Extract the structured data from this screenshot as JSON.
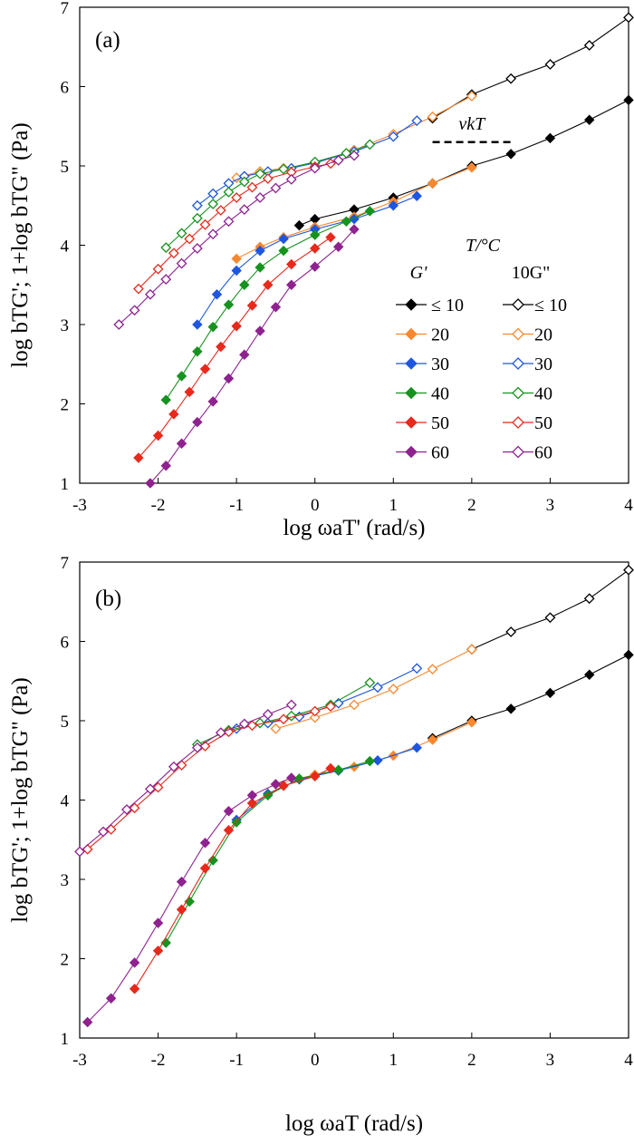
{
  "figure": {
    "description_free": true
  },
  "colors": {
    "le10": "#000000",
    "t20": "#f7882f",
    "t30": "#1e56e0",
    "t40": "#16931f",
    "t50": "#e8291c",
    "t60": "#8e228f"
  },
  "chart_data": [
    {
      "type": "scatter",
      "panel_label": "(a)",
      "xlabel": "log ωaT' (rad/s)",
      "ylabel": "log bTG'; 1+log bTG\" (Pa)",
      "xlim": [
        -3,
        4
      ],
      "ylim": [
        1,
        7
      ],
      "xticks": [
        "-3",
        "-2",
        "-1",
        "0",
        "1",
        "2",
        "3",
        "4"
      ],
      "yticks": [
        "1",
        "2",
        "3",
        "4",
        "5",
        "6",
        "7"
      ],
      "annotation": {
        "text": "νkT",
        "x_from": 1.5,
        "x_to": 2.5,
        "y": 5.3
      },
      "legend": {
        "title": "T/°C",
        "col1_header": "G'",
        "col2_header": "10G\"",
        "entries": [
          "≤ 10",
          "20",
          "30",
          "40",
          "50",
          "60"
        ]
      },
      "series": [
        {
          "name": "G' ≤ 10",
          "color_key": "le10",
          "filled": true,
          "points": [
            [
              -0.2,
              4.25
            ],
            [
              0,
              4.33
            ],
            [
              0.5,
              4.45
            ],
            [
              1,
              4.6
            ],
            [
              1.5,
              4.78
            ],
            [
              2,
              5.0
            ],
            [
              2.5,
              5.15
            ],
            [
              3,
              5.35
            ],
            [
              3.5,
              5.58
            ],
            [
              4,
              5.83
            ]
          ]
        },
        {
          "name": "G' 20",
          "color_key": "t20",
          "filled": true,
          "points": [
            [
              -1.0,
              3.83
            ],
            [
              -0.7,
              3.98
            ],
            [
              -0.4,
              4.1
            ],
            [
              0,
              4.23
            ],
            [
              0.5,
              4.36
            ],
            [
              1,
              4.55
            ],
            [
              1.5,
              4.78
            ],
            [
              2,
              4.98
            ]
          ]
        },
        {
          "name": "G' 30",
          "color_key": "t30",
          "filled": true,
          "points": [
            [
              -1.5,
              3.0
            ],
            [
              -1.25,
              3.38
            ],
            [
              -1.0,
              3.68
            ],
            [
              -0.7,
              3.93
            ],
            [
              -0.4,
              4.08
            ],
            [
              0,
              4.2
            ],
            [
              0.5,
              4.33
            ],
            [
              1,
              4.5
            ],
            [
              1.3,
              4.62
            ]
          ]
        },
        {
          "name": "G' 40",
          "color_key": "t40",
          "filled": true,
          "points": [
            [
              -1.9,
              2.05
            ],
            [
              -1.7,
              2.35
            ],
            [
              -1.5,
              2.66
            ],
            [
              -1.3,
              2.97
            ],
            [
              -1.1,
              3.25
            ],
            [
              -0.9,
              3.5
            ],
            [
              -0.7,
              3.72
            ],
            [
              -0.4,
              3.93
            ],
            [
              0,
              4.13
            ],
            [
              0.4,
              4.3
            ],
            [
              0.7,
              4.43
            ]
          ]
        },
        {
          "name": "G' 50",
          "color_key": "t50",
          "filled": true,
          "points": [
            [
              -2.25,
              1.32
            ],
            [
              -2.0,
              1.6
            ],
            [
              -1.8,
              1.87
            ],
            [
              -1.6,
              2.15
            ],
            [
              -1.4,
              2.44
            ],
            [
              -1.2,
              2.72
            ],
            [
              -1.0,
              2.98
            ],
            [
              -0.8,
              3.24
            ],
            [
              -0.6,
              3.5
            ],
            [
              -0.3,
              3.76
            ],
            [
              0,
              3.96
            ],
            [
              0.2,
              4.1
            ]
          ]
        },
        {
          "name": "G' 60",
          "color_key": "t60",
          "filled": true,
          "points": [
            [
              -2.1,
              1.0
            ],
            [
              -1.9,
              1.22
            ],
            [
              -1.7,
              1.5
            ],
            [
              -1.5,
              1.77
            ],
            [
              -1.3,
              2.03
            ],
            [
              -1.1,
              2.32
            ],
            [
              -0.9,
              2.62
            ],
            [
              -0.7,
              2.92
            ],
            [
              -0.5,
              3.22
            ],
            [
              -0.3,
              3.5
            ],
            [
              0,
              3.73
            ],
            [
              0.3,
              3.98
            ],
            [
              0.5,
              4.2
            ]
          ]
        },
        {
          "name": "10G\" ≤ 10",
          "color_key": "le10",
          "filled": false,
          "points": [
            [
              1.5,
              5.6
            ],
            [
              2,
              5.9
            ],
            [
              2.5,
              6.1
            ],
            [
              3,
              6.28
            ],
            [
              3.5,
              6.52
            ],
            [
              4,
              6.87
            ]
          ]
        },
        {
          "name": "10G\" 20",
          "color_key": "t20",
          "filled": false,
          "points": [
            [
              -1,
              4.85
            ],
            [
              -0.7,
              4.93
            ],
            [
              -0.4,
              4.97
            ],
            [
              0,
              5.03
            ],
            [
              0.5,
              5.2
            ],
            [
              1,
              5.4
            ],
            [
              1.5,
              5.62
            ],
            [
              2,
              5.88
            ]
          ]
        },
        {
          "name": "10G\" 30",
          "color_key": "t30",
          "filled": false,
          "points": [
            [
              -1.5,
              4.5
            ],
            [
              -1.3,
              4.65
            ],
            [
              -1.1,
              4.78
            ],
            [
              -0.9,
              4.87
            ],
            [
              -0.6,
              4.93
            ],
            [
              -0.3,
              4.97
            ],
            [
              0,
              5.04
            ],
            [
              0.5,
              5.18
            ],
            [
              1,
              5.37
            ],
            [
              1.3,
              5.57
            ]
          ]
        },
        {
          "name": "10G\" 40",
          "color_key": "t40",
          "filled": false,
          "points": [
            [
              -1.9,
              3.97
            ],
            [
              -1.7,
              4.15
            ],
            [
              -1.5,
              4.34
            ],
            [
              -1.3,
              4.52
            ],
            [
              -1.1,
              4.67
            ],
            [
              -0.9,
              4.8
            ],
            [
              -0.7,
              4.9
            ],
            [
              -0.4,
              4.96
            ],
            [
              0,
              5.05
            ],
            [
              0.4,
              5.16
            ],
            [
              0.7,
              5.27
            ]
          ]
        },
        {
          "name": "10G\" 50",
          "color_key": "t50",
          "filled": false,
          "points": [
            [
              -2.25,
              3.45
            ],
            [
              -2.0,
              3.7
            ],
            [
              -1.8,
              3.9
            ],
            [
              -1.6,
              4.08
            ],
            [
              -1.4,
              4.26
            ],
            [
              -1.2,
              4.44
            ],
            [
              -1.0,
              4.6
            ],
            [
              -0.8,
              4.73
            ],
            [
              -0.6,
              4.84
            ],
            [
              -0.3,
              4.92
            ],
            [
              0,
              4.99
            ],
            [
              0.2,
              5.03
            ]
          ]
        },
        {
          "name": "10G\" 60",
          "color_key": "t60",
          "filled": false,
          "points": [
            [
              -2.5,
              3.0
            ],
            [
              -2.3,
              3.18
            ],
            [
              -2.1,
              3.38
            ],
            [
              -1.9,
              3.57
            ],
            [
              -1.7,
              3.77
            ],
            [
              -1.5,
              3.96
            ],
            [
              -1.3,
              4.14
            ],
            [
              -1.1,
              4.3
            ],
            [
              -0.9,
              4.45
            ],
            [
              -0.7,
              4.6
            ],
            [
              -0.5,
              4.72
            ],
            [
              -0.3,
              4.83
            ],
            [
              0,
              4.97
            ],
            [
              0.3,
              5.07
            ],
            [
              0.5,
              5.13
            ]
          ]
        }
      ]
    },
    {
      "type": "scatter",
      "panel_label": "(b)",
      "xlabel": "log ωaT (rad/s)",
      "ylabel": "log bTG'; 1+log bTG\" (Pa)",
      "xlim": [
        -3,
        4
      ],
      "ylim": [
        1,
        7
      ],
      "xticks": [
        "-3",
        "-2",
        "-1",
        "0",
        "1",
        "2",
        "3",
        "4"
      ],
      "yticks": [
        "1",
        "2",
        "3",
        "4",
        "5",
        "6",
        "7"
      ],
      "series": [
        {
          "name": "G' ≤ 10",
          "color_key": "le10",
          "filled": true,
          "points": [
            [
              1.5,
              4.78
            ],
            [
              2,
              5.0
            ],
            [
              2.5,
              5.15
            ],
            [
              3,
              5.35
            ],
            [
              3.5,
              5.58
            ],
            [
              4,
              5.83
            ]
          ]
        },
        {
          "name": "G' 20",
          "color_key": "t20",
          "filled": true,
          "points": [
            [
              -0.5,
              4.2
            ],
            [
              0,
              4.32
            ],
            [
              0.5,
              4.42
            ],
            [
              1,
              4.56
            ],
            [
              1.5,
              4.76
            ],
            [
              2,
              4.98
            ]
          ]
        },
        {
          "name": "G' 30",
          "color_key": "t30",
          "filled": true,
          "points": [
            [
              -1,
              3.75
            ],
            [
              -0.6,
              4.08
            ],
            [
              -0.2,
              4.26
            ],
            [
              0.3,
              4.37
            ],
            [
              0.8,
              4.5
            ],
            [
              1.3,
              4.66
            ]
          ]
        },
        {
          "name": "G' 40",
          "color_key": "t40",
          "filled": true,
          "points": [
            [
              -1.9,
              2.2
            ],
            [
              -1.6,
              2.72
            ],
            [
              -1.3,
              3.24
            ],
            [
              -1.0,
              3.72
            ],
            [
              -0.6,
              4.06
            ],
            [
              -0.2,
              4.27
            ],
            [
              0.3,
              4.38
            ],
            [
              0.7,
              4.49
            ]
          ]
        },
        {
          "name": "G' 50",
          "color_key": "t50",
          "filled": true,
          "points": [
            [
              -2.3,
              1.62
            ],
            [
              -2.0,
              2.1
            ],
            [
              -1.7,
              2.62
            ],
            [
              -1.4,
              3.14
            ],
            [
              -1.1,
              3.62
            ],
            [
              -0.8,
              3.96
            ],
            [
              -0.4,
              4.18
            ],
            [
              0,
              4.3
            ],
            [
              0.2,
              4.4
            ]
          ]
        },
        {
          "name": "G' 60",
          "color_key": "t60",
          "filled": true,
          "points": [
            [
              -2.9,
              1.2
            ],
            [
              -2.6,
              1.5
            ],
            [
              -2.3,
              1.95
            ],
            [
              -2.0,
              2.45
            ],
            [
              -1.7,
              2.97
            ],
            [
              -1.4,
              3.46
            ],
            [
              -1.1,
              3.86
            ],
            [
              -0.8,
              4.06
            ],
            [
              -0.5,
              4.2
            ],
            [
              -0.3,
              4.28
            ]
          ]
        },
        {
          "name": "10G\" ≤ 10",
          "color_key": "le10",
          "filled": false,
          "points": [
            [
              2,
              5.9
            ],
            [
              2.5,
              6.12
            ],
            [
              3,
              6.3
            ],
            [
              3.5,
              6.54
            ],
            [
              4,
              6.9
            ]
          ]
        },
        {
          "name": "10G\" 20",
          "color_key": "t20",
          "filled": false,
          "points": [
            [
              -0.5,
              4.9
            ],
            [
              0,
              5.04
            ],
            [
              0.5,
              5.2
            ],
            [
              1,
              5.4
            ],
            [
              1.5,
              5.65
            ],
            [
              2,
              5.9
            ]
          ]
        },
        {
          "name": "10G\" 30",
          "color_key": "t30",
          "filled": false,
          "points": [
            [
              -1,
              4.9
            ],
            [
              -0.6,
              4.97
            ],
            [
              -0.2,
              5.05
            ],
            [
              0.3,
              5.22
            ],
            [
              0.8,
              5.42
            ],
            [
              1.3,
              5.66
            ]
          ]
        },
        {
          "name": "10G\" 40",
          "color_key": "t40",
          "filled": false,
          "points": [
            [
              -1.5,
              4.7
            ],
            [
              -1.1,
              4.88
            ],
            [
              -0.7,
              4.97
            ],
            [
              -0.3,
              5.06
            ],
            [
              0.2,
              5.2
            ],
            [
              0.7,
              5.48
            ]
          ]
        },
        {
          "name": "10G\" 50",
          "color_key": "t50",
          "filled": false,
          "points": [
            [
              -2.9,
              3.38
            ],
            [
              -2.6,
              3.63
            ],
            [
              -2.3,
              3.9
            ],
            [
              -2.0,
              4.16
            ],
            [
              -1.7,
              4.44
            ],
            [
              -1.4,
              4.68
            ],
            [
              -1.1,
              4.86
            ],
            [
              -0.8,
              4.94
            ],
            [
              -0.4,
              5.02
            ],
            [
              0,
              5.12
            ],
            [
              0.2,
              5.18
            ]
          ]
        },
        {
          "name": "10G\" 60",
          "color_key": "t60",
          "filled": false,
          "points": [
            [
              -3,
              3.35
            ],
            [
              -2.7,
              3.6
            ],
            [
              -2.4,
              3.88
            ],
            [
              -2.1,
              4.14
            ],
            [
              -1.8,
              4.42
            ],
            [
              -1.5,
              4.66
            ],
            [
              -1.2,
              4.85
            ],
            [
              -0.9,
              4.96
            ],
            [
              -0.6,
              5.08
            ],
            [
              -0.3,
              5.2
            ]
          ]
        }
      ]
    }
  ]
}
